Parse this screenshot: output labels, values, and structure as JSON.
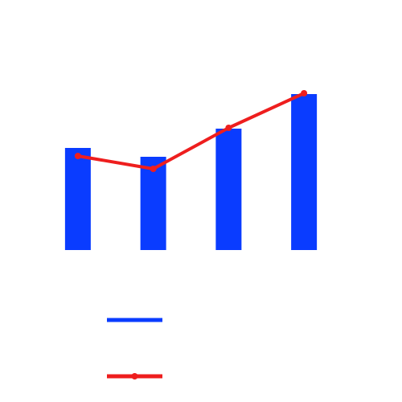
{
  "chart_data": {
    "type": "bar",
    "categories": [
      "",
      "",
      "",
      ""
    ],
    "series": [
      {
        "kind": "bar",
        "color": "#0a3cff",
        "values": [
          127,
          116,
          151,
          194
        ]
      },
      {
        "kind": "line",
        "color": "#ee1e1e",
        "marker": "circle",
        "values": [
          117,
          101,
          152,
          195
        ]
      }
    ],
    "ylim": [
      0,
      230
    ],
    "grid": false,
    "axes_visible": false,
    "legend": {
      "placement": "bottom-left",
      "entries": [
        {
          "series_index": 0,
          "color": "#0a3cff",
          "marker": "none"
        },
        {
          "series_index": 1,
          "color": "#ee1e1e",
          "marker": "circle"
        }
      ]
    }
  }
}
